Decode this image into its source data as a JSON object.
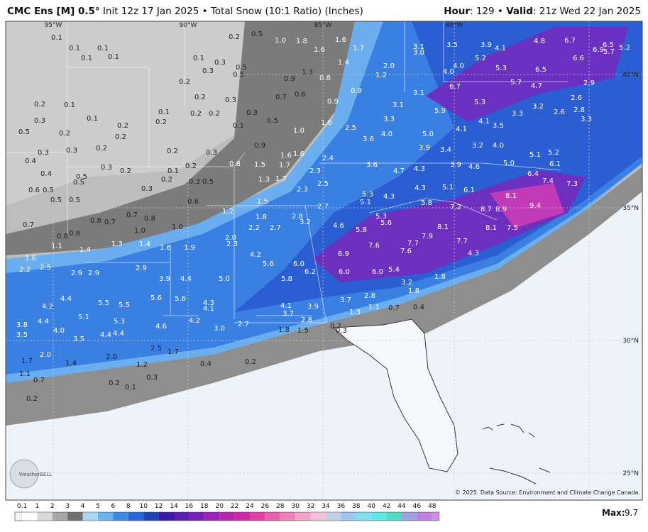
{
  "header": {
    "model": "CMC Ens [M] 0.5°",
    "description": "Init 12z 17 Jan 2025 • Total Snow (10:1 Ratio) (Inches)",
    "hour_label": "Hour",
    "hour_value": ": 129 •",
    "valid_label": "Valid",
    "valid_value": ": 21z Wed 22 Jan 2025"
  },
  "map": {
    "longitude_labels": [
      "95°W",
      "90°W",
      "85°W",
      "80°W"
    ],
    "latitude_labels": [
      "40°N",
      "35°N",
      "30°N",
      "25°N"
    ],
    "values": [
      "0.1",
      "0.1",
      "0.1",
      "0.1",
      "0.1",
      "0.2",
      "0.5",
      "1.0",
      "1.8",
      "1.6",
      "1.6",
      "1.7",
      "1.4",
      "2.0",
      "1.2",
      "3.1",
      "3.0",
      "3.5",
      "3.9",
      "4.1",
      "4.8",
      "6.7",
      "6.9",
      "6.5",
      "5.7",
      "5.2",
      "5.2",
      "4.0",
      "4.0",
      "5.3",
      "6.5",
      "6.6",
      "2.9",
      "5.7",
      "4.7",
      "6.7",
      "0.1",
      "0.3",
      "0.3",
      "0.5",
      "0.5",
      "0.2",
      "0.9",
      "1.3",
      "0.8",
      "0.9",
      "0.7",
      "0.6",
      "0.3",
      "0.2",
      "0.1",
      "0.2",
      "0.3",
      "0.1",
      "0.2",
      "0.1",
      "0.2",
      "0.2",
      "0.2",
      "0.3",
      "0.1",
      "0.5",
      "0.9",
      "1.0",
      "1.6",
      "2.5",
      "3.3",
      "3.1",
      "3.1",
      "5.9",
      "5.3",
      "4.1",
      "4.1",
      "3.5",
      "3.3",
      "3.2",
      "2.6",
      "2.8",
      "2.6",
      "3.3",
      "0.5",
      "0.2",
      "0.2",
      "0.3",
      "0.2",
      "0.2",
      "0.3",
      "0.3",
      "0.4",
      "0.9",
      "1.6",
      "1.6",
      "2.4",
      "3.6",
      "4.0",
      "5.0",
      "3.9",
      "3.4",
      "3.2",
      "4.0",
      "5.1",
      "5.2",
      "3.6",
      "4.7",
      "4.3",
      "3.9",
      "4.6",
      "5.0",
      "6.1",
      "6.4",
      "7.4",
      "7.3",
      "0.4",
      "0.5",
      "0.3",
      "0.2",
      "0.1",
      "0.2",
      "0.2",
      "0.3",
      "0.5",
      "0.3",
      "0.5",
      "0.8",
      "1.5",
      "1.7",
      "2.3",
      "1.7",
      "1.3",
      "2.5",
      "2.3",
      "0.6",
      "0.5",
      "0.5",
      "0.5",
      "0.6",
      "1.5",
      "2.7",
      "5.3",
      "5.1",
      "4.3",
      "4.3",
      "5.1",
      "6.1",
      "8.1",
      "5.8",
      "7.2",
      "8.7",
      "8.9",
      "9.4",
      "1.2",
      "1.8",
      "2.8",
      "3.2",
      "2.2",
      "2.7",
      "0.8",
      "0.7",
      "0.7",
      "0.8",
      "1.0",
      "1.0",
      "0.7",
      "0.8",
      "0.8",
      "4.6",
      "5.3",
      "5.6",
      "5.8",
      "8.1",
      "8.1",
      "7.5",
      "7.9",
      "7.7",
      "7.6",
      "7.7",
      "7.6",
      "2.0",
      "2.3",
      "1.1",
      "1.3",
      "1.4",
      "1.6",
      "1.9",
      "1.4",
      "1.6",
      "2.2",
      "2.5",
      "4.2",
      "5.6",
      "6.0",
      "6.2",
      "6.9",
      "4.3",
      "2.9",
      "2.9",
      "2.9",
      "3.9",
      "4.4",
      "5.0",
      "5.8",
      "6.0",
      "6.0",
      "5.4",
      "1.8",
      "3.2",
      "1.8",
      "4.2",
      "4.4",
      "5.1",
      "5.5",
      "5.5",
      "5.6",
      "5.6",
      "4.3",
      "4.1",
      "4.1",
      "3.9",
      "3.7",
      "2.8",
      "1.1",
      "0.7",
      "0.4",
      "1.3",
      "3.7",
      "2.8",
      "4.2",
      "4.6",
      "3.8",
      "4.4",
      "4.0",
      "5.3",
      "3.5",
      "3.5",
      "4.4",
      "4.4",
      "3.0",
      "2.7",
      "1.8",
      "1.5",
      "0.7",
      "0.3",
      "2.0",
      "1.4",
      "2.0",
      "2.5",
      "1.7",
      "1.2",
      "0.4",
      "0.2",
      "1.7",
      "1.1",
      "0.7",
      "0.2",
      "0.1",
      "0.3",
      "0.2"
    ],
    "logo": "WeatherBELL",
    "credit": "© 2025. Data Source: Environment and Climate Change Canada."
  },
  "legend": {
    "labels": [
      0.1,
      1,
      2,
      3,
      4,
      5,
      6,
      8,
      10,
      12,
      14,
      16,
      18,
      20,
      22,
      24,
      26,
      28,
      30,
      32,
      34,
      36,
      38,
      40,
      42,
      44,
      46,
      48
    ],
    "max_label": "Max:",
    "max_value": "9.7"
  }
}
